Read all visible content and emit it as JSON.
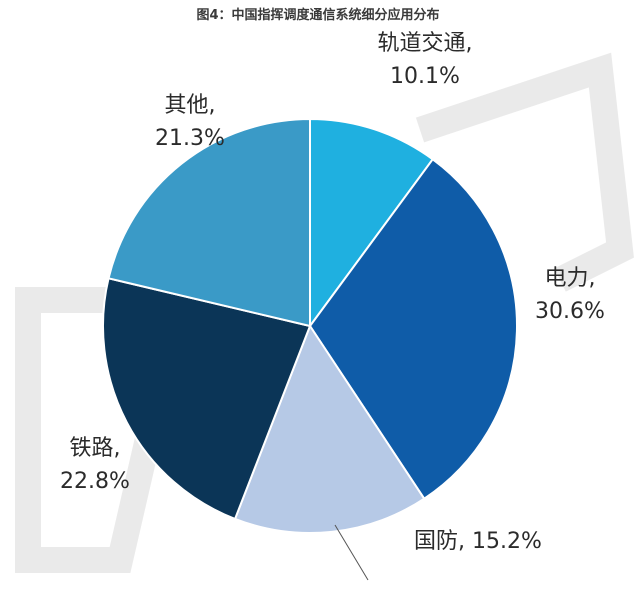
{
  "chart_data": {
    "type": "pie",
    "title": "图4：中国指挥调度通信系统细分应用分布",
    "slices": [
      {
        "name": "轨道交通",
        "value": 10.1,
        "label": "10.1%",
        "color": "#1fb0e0"
      },
      {
        "name": "电力",
        "value": 30.6,
        "label": "30.6%",
        "color": "#0f5ca8"
      },
      {
        "name": "国防",
        "value": 15.2,
        "label": "15.2%",
        "color": "#b6c9e6"
      },
      {
        "name": "铁路",
        "value": 22.8,
        "label": "22.8%",
        "color": "#0b3557"
      },
      {
        "name": "其他",
        "value": 21.3,
        "label": "21.3%",
        "color": "#3a9ac7"
      }
    ],
    "start_angle_deg": 0,
    "direction": "clockwise"
  }
}
